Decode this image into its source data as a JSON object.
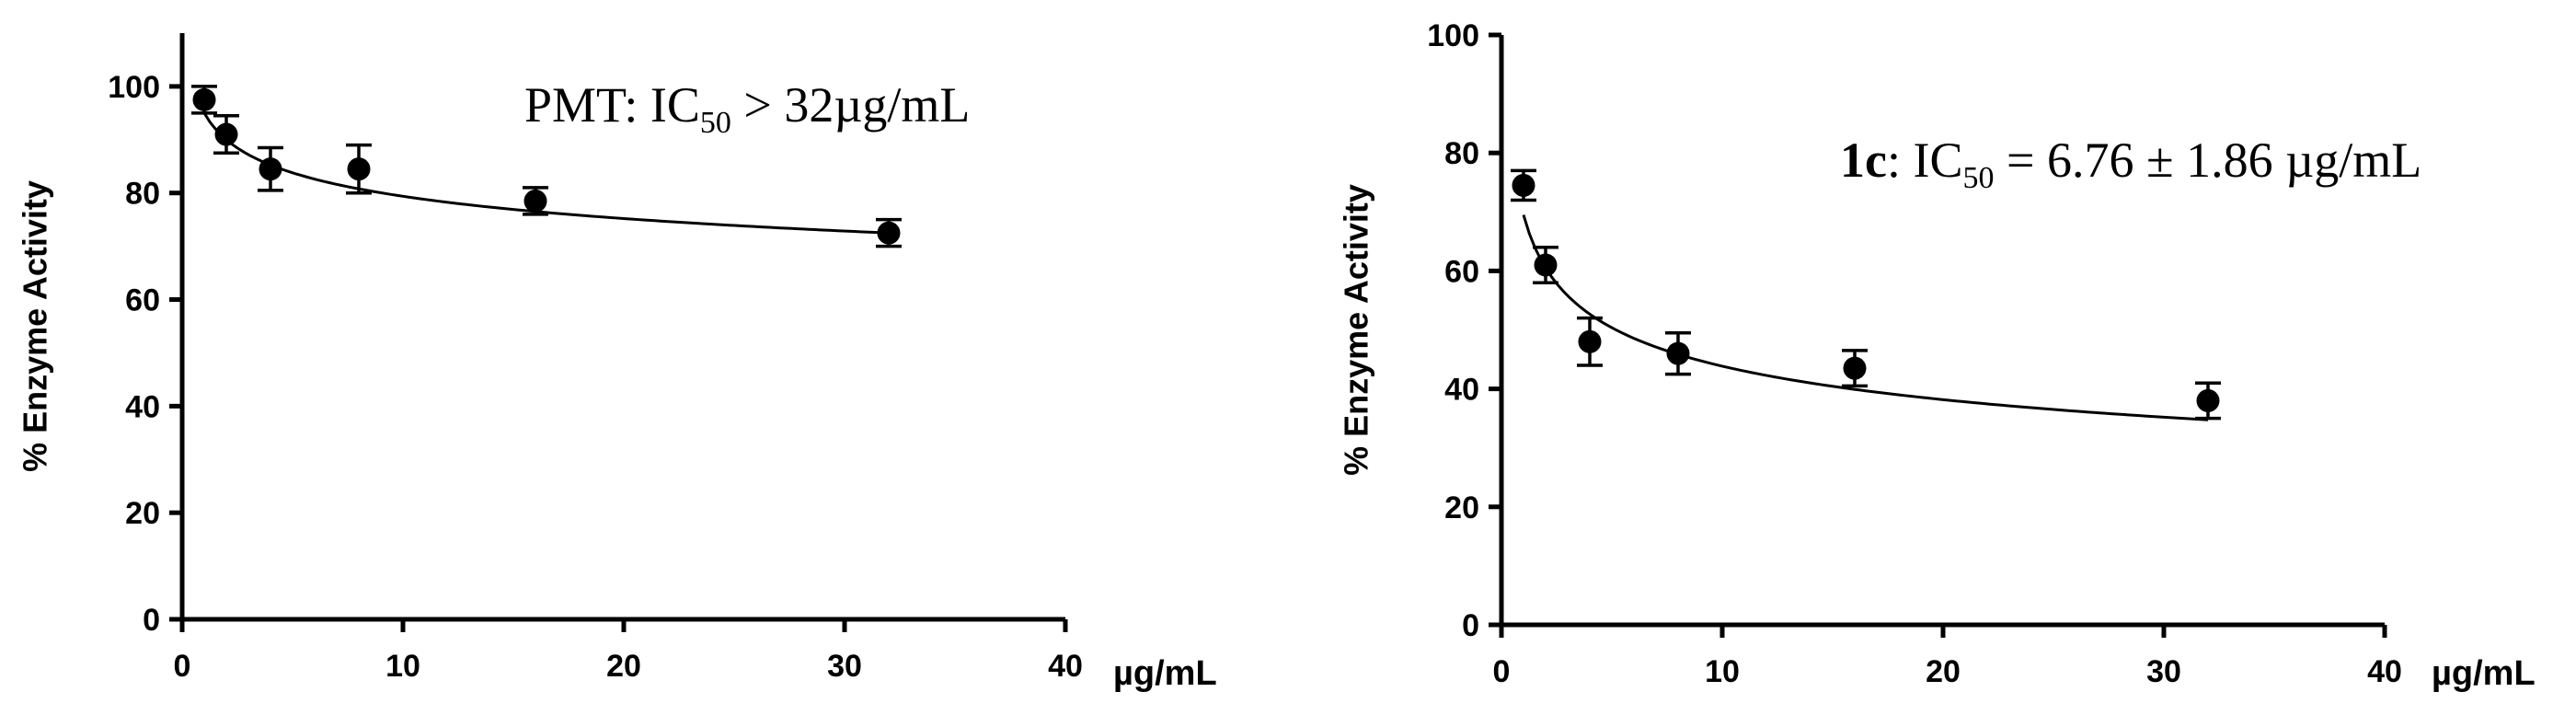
{
  "chart_data": [
    {
      "type": "scatter",
      "ylabel": "% Enzyme Activity",
      "x_unit_label": "µg/mL",
      "xlim": [
        0,
        40
      ],
      "ylim": [
        0,
        110
      ],
      "xticks": [
        "0",
        "10",
        "20",
        "30",
        "40"
      ],
      "yticks": [
        "0",
        "20",
        "40",
        "60",
        "80",
        "100"
      ],
      "x": [
        1,
        2,
        4,
        8,
        16,
        32
      ],
      "y": [
        97.5,
        91,
        84.5,
        84.5,
        78.5,
        72.5
      ],
      "error": [
        2.5,
        3.5,
        4,
        4.5,
        2.5,
        2.5
      ],
      "fit": {
        "type": "power",
        "a": 95.0,
        "b": -0.078,
        "x_start": 1,
        "x_end": 32
      },
      "annotation": {
        "bold": "",
        "pre": "PMT: IC",
        "sub": "50",
        "post": " > 32µg/mL"
      },
      "grid": false
    },
    {
      "type": "scatter",
      "ylabel": "% Enzyme Activity",
      "x_unit_label": "µg/mL",
      "xlim": [
        0,
        40
      ],
      "ylim": [
        0,
        100
      ],
      "xticks": [
        "0",
        "10",
        "20",
        "30",
        "40"
      ],
      "yticks": [
        "0",
        "20",
        "40",
        "60",
        "80",
        "100"
      ],
      "x": [
        1,
        2,
        4,
        8,
        16,
        32
      ],
      "y": [
        74.5,
        61,
        48,
        46,
        43.5,
        38
      ],
      "error": [
        2.5,
        3,
        4,
        3.5,
        3,
        3
      ],
      "fit": {
        "type": "power",
        "a": 69.5,
        "b": -0.2,
        "x_start": 1,
        "x_end": 32
      },
      "annotation": {
        "bold": "1c",
        "pre": ": IC",
        "sub": "50",
        "post": " = 6.76 ± 1.86 µg/mL"
      },
      "grid": false
    }
  ]
}
